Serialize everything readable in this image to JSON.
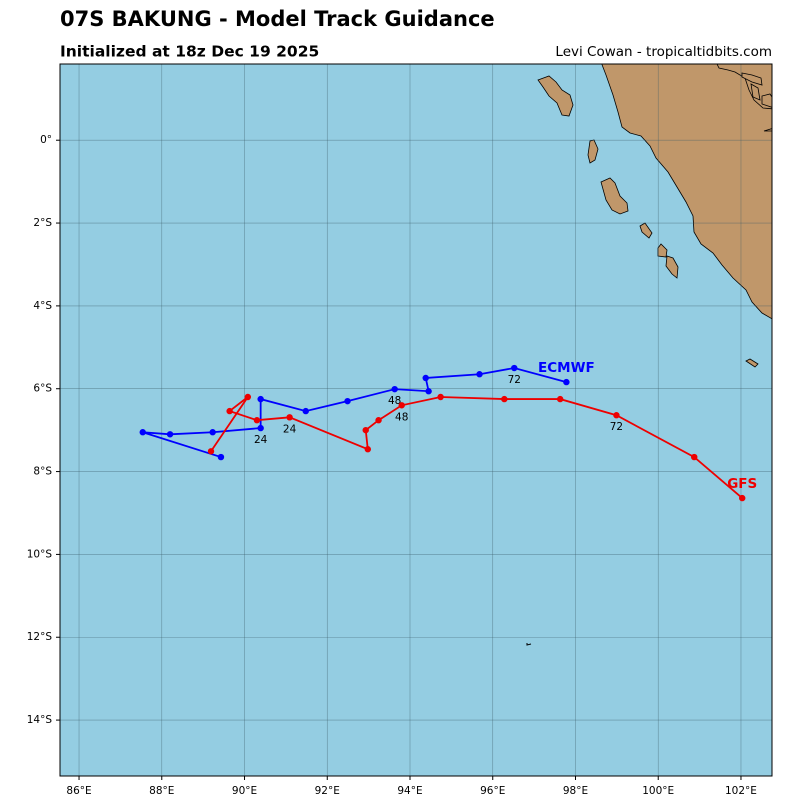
{
  "chart_data": {
    "type": "track",
    "title": "07S BAKUNG - Model Track Guidance",
    "subtitle": "Initialized at 18z Dec 19 2025",
    "credit": "Levi Cowan - tropicaltidbits.com",
    "xlim": [
      85.54,
      102.75
    ],
    "ylim": [
      -15.35,
      1.84
    ],
    "xticks": [
      {
        "value": 86,
        "label": "86°E"
      },
      {
        "value": 88,
        "label": "88°E"
      },
      {
        "value": 90,
        "label": "90°E"
      },
      {
        "value": 92,
        "label": "92°E"
      },
      {
        "value": 94,
        "label": "94°E"
      },
      {
        "value": 96,
        "label": "96°E"
      },
      {
        "value": 98,
        "label": "98°E"
      },
      {
        "value": 100,
        "label": "100°E"
      },
      {
        "value": 102,
        "label": "102°E"
      }
    ],
    "yticks": [
      {
        "value": 0,
        "label": "0°"
      },
      {
        "value": -2,
        "label": "2°S"
      },
      {
        "value": -4,
        "label": "4°S"
      },
      {
        "value": -6,
        "label": "6°S"
      },
      {
        "value": -8,
        "label": "8°S"
      },
      {
        "value": -10,
        "label": "10°S"
      },
      {
        "value": -12,
        "label": "12°S"
      },
      {
        "value": -14,
        "label": "14°S"
      }
    ],
    "grid": true,
    "series": [
      {
        "name": "ECMWF",
        "color": "#0000ff",
        "x": [
          89.43,
          87.54,
          88.2,
          89.23,
          90.39,
          90.39,
          91.48,
          92.49,
          93.63,
          94.45,
          94.38,
          95.68,
          96.52,
          97.78
        ],
        "values": [
          -7.65,
          -7.05,
          -7.1,
          -7.05,
          -6.95,
          -6.25,
          -6.54,
          -6.3,
          -6.01,
          -6.06,
          -5.74,
          -5.65,
          -5.5,
          -5.84
        ],
        "hour_labels": [
          null,
          null,
          null,
          null,
          "24",
          null,
          null,
          null,
          "48",
          null,
          null,
          null,
          "72",
          null
        ]
      },
      {
        "name": "GFS",
        "color": "#ee0000",
        "x": [
          89.19,
          90.08,
          89.64,
          90.3,
          91.09,
          92.98,
          92.93,
          93.24,
          93.8,
          94.74,
          96.28,
          97.63,
          98.99,
          100.87,
          102.03
        ],
        "values": [
          -7.51,
          -6.2,
          -6.54,
          -6.76,
          -6.69,
          -7.46,
          -7.0,
          -6.76,
          -6.4,
          -6.2,
          -6.25,
          -6.25,
          -6.64,
          -7.65,
          -8.64
        ],
        "hour_labels": [
          null,
          null,
          null,
          null,
          "24",
          null,
          null,
          null,
          "48",
          null,
          null,
          null,
          "72",
          null,
          null
        ]
      }
    ]
  }
}
